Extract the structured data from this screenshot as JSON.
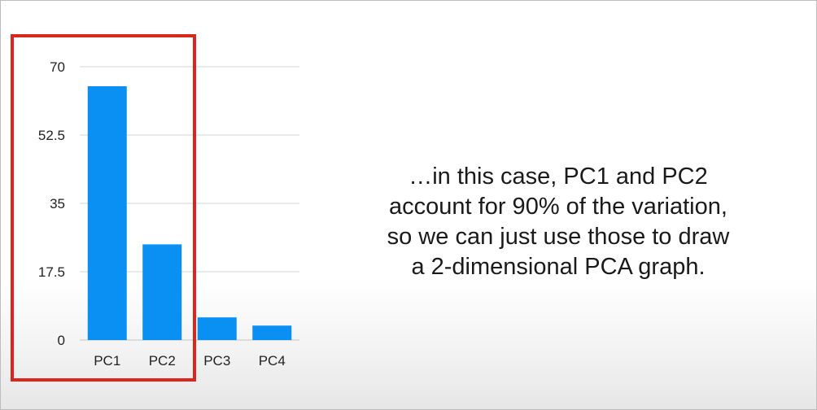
{
  "chart_data": {
    "type": "bar",
    "categories": [
      "PC1",
      "PC2",
      "PC3",
      "PC4"
    ],
    "values": [
      65,
      24.5,
      5.8,
      3.7
    ],
    "yticks": [
      "0",
      "17.5",
      "35",
      "52.5",
      "70"
    ],
    "ytick_values": [
      0,
      17.5,
      35,
      52.5,
      70
    ],
    "ylim": [
      0,
      70
    ],
    "title": "",
    "xlabel": "",
    "ylabel": "",
    "bar_color": "#0a8ff3",
    "grid": true,
    "highlighted_categories": [
      "PC1",
      "PC2"
    ],
    "highlight_color": "#d9271d"
  },
  "caption": {
    "lines": [
      "…in this case, PC1 and PC2",
      "account for 90% of the variation,",
      "so we can just use those to draw",
      "a 2-dimensional PCA graph."
    ]
  }
}
